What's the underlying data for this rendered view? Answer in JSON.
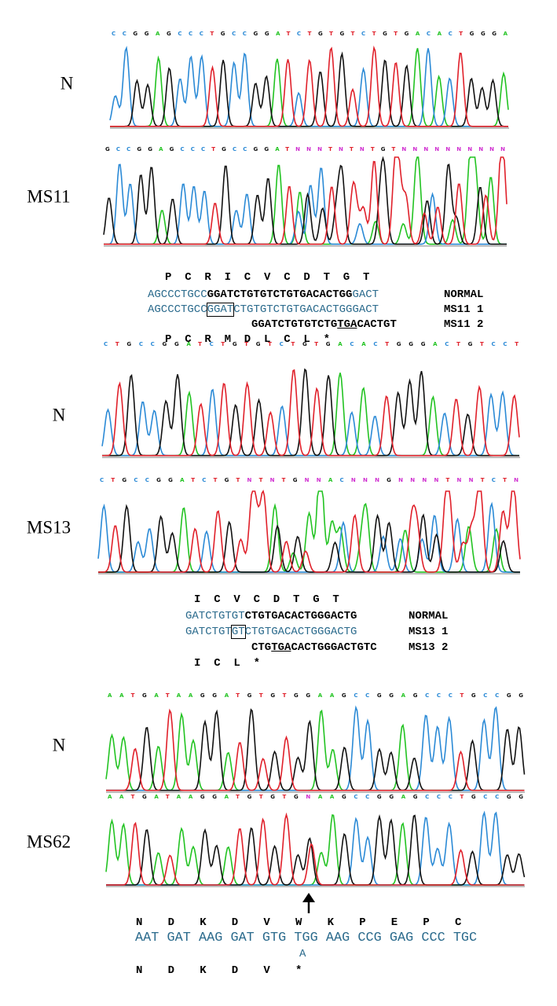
{
  "panels": [
    {
      "label": "N",
      "bases": "CCGGAGCCCTGCCGGATCTGTGTCTGTGACACTGGGA"
    },
    {
      "label": "MS11",
      "bases": "GCCGGAGCCCTGCCGGATNNNTNTNTGTNNNNNNNNNN"
    },
    {
      "label": "N",
      "bases": "CTGCCGGATCTGTGTCTGTGACACTGGGACTGTCCT"
    },
    {
      "label": "MS13",
      "bases": "CTGCCGGATCTGTNTNTGNNACNNNGNNNNTNNTCTN"
    },
    {
      "label": "N",
      "bases": "AATGATAAGGATGTGTGGAAGCCGGAGCCCTGCCGG"
    },
    {
      "label": "MS62",
      "bases": "AATGATAAGGATGTGTGNAAGCCGGAGCCCTGCCGG"
    }
  ],
  "alignments": [
    {
      "aa_top": [
        "P",
        "C",
        "R",
        "I",
        "C",
        "V",
        "C",
        "D",
        "T",
        "G",
        "T"
      ],
      "rows": [
        {
          "segments": [
            {
              "text": "AGCCCTGCC",
              "style": "plain"
            },
            {
              "text": "GGATCTGTGTCTGTGACACTGG",
              "style": "bold"
            },
            {
              "text": "GACT",
              "style": "plain"
            }
          ],
          "label": "NORMAL"
        },
        {
          "segments": [
            {
              "text": "AGCCCTGCC",
              "style": "plain"
            },
            {
              "text": "GGAT",
              "style": "box"
            },
            {
              "text": "CTGTGTCTGTGACACTGGGACT",
              "style": "plain"
            }
          ],
          "label": "MS11 1"
        },
        {
          "segments": [
            {
              "text": "GGATCTGTGTCTG",
              "style": "bold"
            },
            {
              "text": "TGA",
              "style": "underline"
            },
            {
              "text": "CACTGT",
              "style": "bold"
            }
          ],
          "label": "MS11 2"
        }
      ],
      "aa_bottom": [
        "P",
        "C",
        "R",
        "M",
        "D",
        "L",
        "C",
        "L",
        "*"
      ]
    },
    {
      "aa_top": [
        "I",
        "C",
        "V",
        "C",
        "D",
        "T",
        "G",
        "T"
      ],
      "rows": [
        {
          "segments": [
            {
              "text": "GATCTGTGT",
              "style": "plain"
            },
            {
              "text": "CTGTGACACTGGGACTG",
              "style": "bold"
            }
          ],
          "label": "NORMAL"
        },
        {
          "segments": [
            {
              "text": "GATCTGT",
              "style": "plain"
            },
            {
              "text": "GT",
              "style": "box"
            },
            {
              "text": "CTGTGACACTGGGACTG",
              "style": "plain"
            }
          ],
          "label": "MS13 1"
        },
        {
          "segments": [
            {
              "text": "CTG",
              "style": "bold"
            },
            {
              "text": "TGA",
              "style": "underline"
            },
            {
              "text": "CACTGGGACTGTC",
              "style": "bold"
            }
          ],
          "label": "MS13 2"
        }
      ],
      "aa_bottom": [
        "I",
        "C",
        "L",
        "*"
      ]
    },
    {
      "aa_top": [
        "N",
        "D",
        "K",
        "D",
        "V",
        "W",
        "K",
        "P",
        "E",
        "P",
        "C"
      ],
      "rows": [
        {
          "segments": [
            {
              "text": "AAT GAT AAG GAT GTG TGG AAG CCG GAG CCC TGC",
              "style": "plain"
            }
          ]
        },
        {
          "segments": [
            {
              "text": "A",
              "style": "plain"
            }
          ]
        }
      ],
      "aa_bottom": [
        "N",
        "D",
        "K",
        "D",
        "V",
        "*"
      ]
    }
  ]
}
